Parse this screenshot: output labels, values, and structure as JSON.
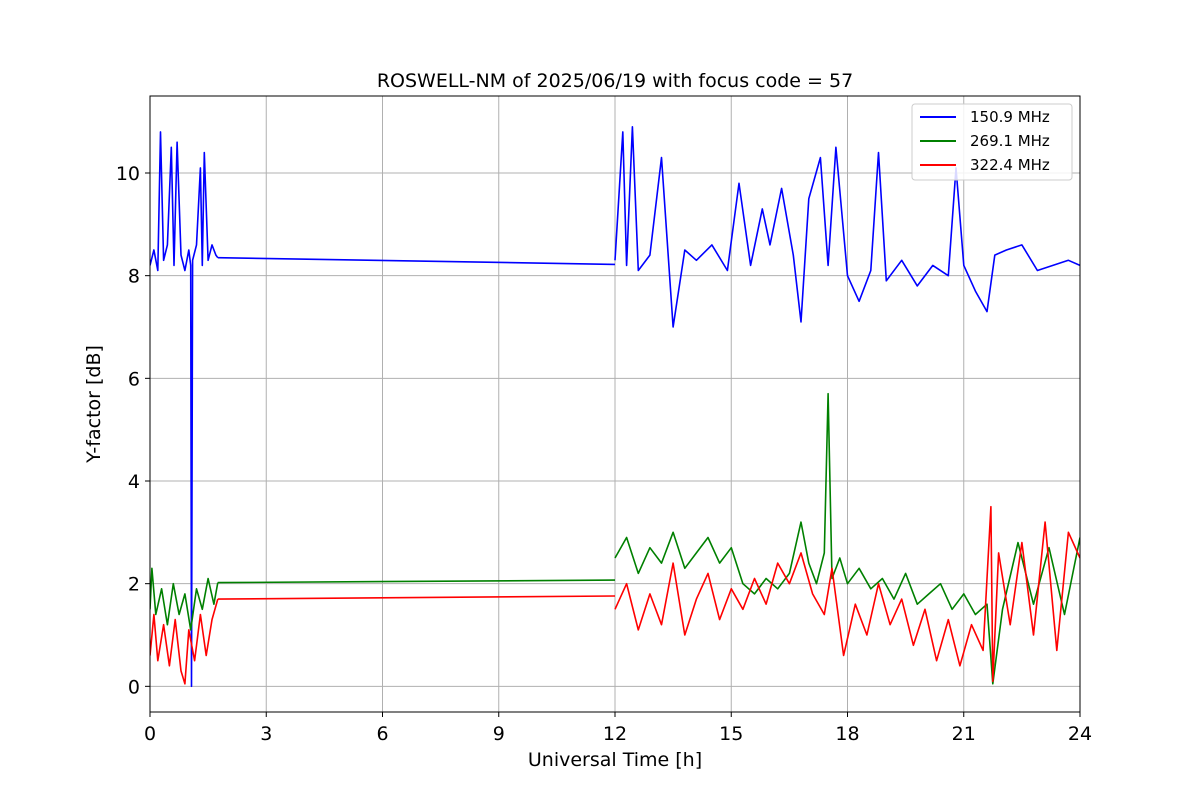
{
  "chart_data": {
    "type": "line",
    "title": "ROSWELL-NM of 2025/06/19 with focus code = 57",
    "xlabel": "Universal Time [h]",
    "ylabel": "Y-factor [dB]",
    "xlim": [
      0,
      24
    ],
    "ylim": [
      -0.5,
      11.5
    ],
    "xticks": [
      0,
      3,
      6,
      9,
      12,
      15,
      18,
      21,
      24
    ],
    "yticks": [
      0,
      2,
      4,
      6,
      8,
      10
    ],
    "grid": true,
    "legend_position": "top-right",
    "series": [
      {
        "name": "150.9 MHz",
        "color": "#0000ff",
        "segments": [
          {
            "x": [
              0.0,
              0.1,
              0.2,
              0.27,
              0.35,
              0.45,
              0.55,
              0.62,
              0.7,
              0.8,
              0.9,
              1.0,
              1.05,
              1.07,
              1.1,
              1.2,
              1.3,
              1.35,
              1.4,
              1.5,
              1.6,
              1.7,
              1.75
            ],
            "y": [
              8.2,
              8.5,
              8.1,
              10.8,
              8.3,
              8.6,
              10.5,
              8.2,
              10.6,
              8.4,
              8.1,
              8.5,
              8.2,
              0.0,
              8.3,
              8.6,
              10.1,
              8.2,
              10.4,
              8.3,
              8.6,
              8.4,
              8.35
            ]
          },
          {
            "x": [
              1.75,
              12.0
            ],
            "y": [
              8.35,
              8.22
            ]
          },
          {
            "x": [
              12.0,
              12.2,
              12.3,
              12.45,
              12.6,
              12.9,
              13.2,
              13.5,
              13.8,
              14.1,
              14.5,
              14.9,
              15.2,
              15.5,
              15.8,
              16.0,
              16.3,
              16.6,
              16.8,
              17.0,
              17.3,
              17.5,
              17.7,
              18.0,
              18.3,
              18.6,
              18.8,
              19.0,
              19.4,
              19.8,
              20.2,
              20.6,
              20.8,
              21.0,
              21.3,
              21.6,
              21.8,
              22.1,
              22.5,
              22.9,
              23.3,
              23.7,
              24.0
            ],
            "y": [
              8.3,
              10.8,
              8.2,
              10.9,
              8.1,
              8.4,
              10.3,
              7.0,
              8.5,
              8.3,
              8.6,
              8.1,
              9.8,
              8.2,
              9.3,
              8.6,
              9.7,
              8.4,
              7.1,
              9.5,
              10.3,
              8.2,
              10.5,
              8.0,
              7.5,
              8.1,
              10.4,
              7.9,
              8.3,
              7.8,
              8.2,
              8.0,
              10.1,
              8.2,
              7.7,
              7.3,
              8.4,
              8.5,
              8.6,
              8.1,
              8.2,
              8.3,
              8.2
            ]
          }
        ]
      },
      {
        "name": "269.1 MHz",
        "color": "#008000",
        "segments": [
          {
            "x": [
              0.0,
              0.05,
              0.15,
              0.3,
              0.45,
              0.6,
              0.75,
              0.9,
              1.05,
              1.2,
              1.35,
              1.5,
              1.65,
              1.75
            ],
            "y": [
              1.5,
              2.3,
              1.4,
              1.9,
              1.2,
              2.0,
              1.4,
              1.8,
              1.1,
              1.9,
              1.5,
              2.1,
              1.6,
              2.02
            ]
          },
          {
            "x": [
              1.75,
              12.0
            ],
            "y": [
              2.02,
              2.07
            ]
          },
          {
            "x": [
              12.0,
              12.3,
              12.6,
              12.9,
              13.2,
              13.5,
              13.8,
              14.1,
              14.4,
              14.7,
              15.0,
              15.3,
              15.6,
              15.9,
              16.2,
              16.5,
              16.8,
              17.0,
              17.2,
              17.4,
              17.5,
              17.6,
              17.8,
              18.0,
              18.3,
              18.6,
              18.9,
              19.2,
              19.5,
              19.8,
              20.1,
              20.4,
              20.7,
              21.0,
              21.3,
              21.6,
              21.75,
              22.0,
              22.4,
              22.8,
              23.2,
              23.6,
              24.0
            ],
            "y": [
              2.5,
              2.9,
              2.2,
              2.7,
              2.4,
              3.0,
              2.3,
              2.6,
              2.9,
              2.4,
              2.7,
              2.0,
              1.8,
              2.1,
              1.9,
              2.2,
              3.2,
              2.4,
              2.0,
              2.6,
              5.7,
              2.1,
              2.5,
              2.0,
              2.3,
              1.9,
              2.1,
              1.7,
              2.2,
              1.6,
              1.8,
              2.0,
              1.5,
              1.8,
              1.4,
              1.6,
              0.05,
              1.5,
              2.8,
              1.6,
              2.7,
              1.4,
              2.9
            ]
          }
        ]
      },
      {
        "name": "322.4 MHz",
        "color": "#ff0000",
        "segments": [
          {
            "x": [
              0.0,
              0.1,
              0.2,
              0.35,
              0.5,
              0.65,
              0.8,
              0.9,
              1.0,
              1.15,
              1.3,
              1.45,
              1.6,
              1.75
            ],
            "y": [
              0.6,
              1.4,
              0.5,
              1.2,
              0.4,
              1.3,
              0.3,
              0.05,
              1.1,
              0.5,
              1.4,
              0.6,
              1.3,
              1.7
            ]
          },
          {
            "x": [
              1.75,
              12.0
            ],
            "y": [
              1.7,
              1.76
            ]
          },
          {
            "x": [
              12.0,
              12.3,
              12.6,
              12.9,
              13.2,
              13.5,
              13.8,
              14.1,
              14.4,
              14.7,
              15.0,
              15.3,
              15.6,
              15.9,
              16.2,
              16.5,
              16.8,
              17.1,
              17.4,
              17.6,
              17.9,
              18.2,
              18.5,
              18.8,
              19.1,
              19.4,
              19.7,
              20.0,
              20.3,
              20.6,
              20.9,
              21.2,
              21.5,
              21.7,
              21.75,
              21.9,
              22.2,
              22.5,
              22.8,
              23.1,
              23.4,
              23.7,
              24.0
            ],
            "y": [
              1.5,
              2.0,
              1.1,
              1.8,
              1.2,
              2.4,
              1.0,
              1.7,
              2.2,
              1.3,
              1.9,
              1.5,
              2.1,
              1.6,
              2.4,
              2.0,
              2.6,
              1.8,
              1.4,
              2.3,
              0.6,
              1.6,
              1.0,
              2.0,
              1.2,
              1.7,
              0.8,
              1.5,
              0.5,
              1.3,
              0.4,
              1.2,
              0.7,
              3.5,
              0.1,
              2.6,
              1.2,
              2.8,
              1.0,
              3.2,
              0.7,
              3.0,
              2.5
            ]
          }
        ]
      }
    ]
  }
}
